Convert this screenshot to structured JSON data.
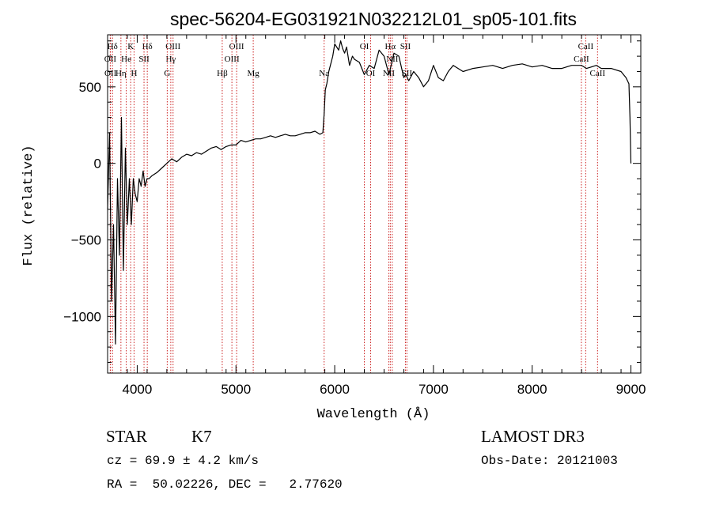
{
  "colors": {
    "axis": "#000000",
    "spectrum": "#000000",
    "line_marker": "#cc2222",
    "background": "#ffffff"
  },
  "chart_data": {
    "type": "line",
    "title": "spec-56204-EG031921N032212L01_sp05-101.fits",
    "xlabel": "Wavelength (Å)",
    "ylabel": "Flux (relative)",
    "xlim": [
      3700,
      9100
    ],
    "ylim": [
      -1370,
      840
    ],
    "xticks": [
      4000,
      5000,
      6000,
      7000,
      8000,
      9000
    ],
    "yticks": [
      -1000,
      -500,
      0,
      500
    ],
    "xtick_labels": [
      "4000",
      "5000",
      "6000",
      "7000",
      "8000",
      "9000"
    ],
    "ytick_labels": [
      "−1000",
      "−500",
      "0",
      "500"
    ],
    "series": [
      {
        "name": "flux",
        "x": [
          3700,
          3720,
          3740,
          3760,
          3780,
          3800,
          3820,
          3840,
          3860,
          3880,
          3900,
          3920,
          3940,
          3960,
          3980,
          4000,
          4020,
          4040,
          4060,
          4080,
          4100,
          4120,
          4150,
          4200,
          4250,
          4300,
          4350,
          4400,
          4450,
          4500,
          4550,
          4600,
          4650,
          4700,
          4750,
          4800,
          4850,
          4900,
          4950,
          5000,
          5050,
          5100,
          5150,
          5200,
          5250,
          5300,
          5350,
          5400,
          5450,
          5500,
          5550,
          5600,
          5650,
          5700,
          5750,
          5800,
          5850,
          5880,
          5893,
          5905,
          5920,
          5940,
          5960,
          5980,
          6000,
          6020,
          6040,
          6060,
          6080,
          6100,
          6120,
          6150,
          6180,
          6200,
          6250,
          6300,
          6350,
          6400,
          6450,
          6500,
          6550,
          6600,
          6650,
          6700,
          6720,
          6750,
          6800,
          6850,
          6900,
          6950,
          7000,
          7050,
          7100,
          7150,
          7200,
          7300,
          7400,
          7500,
          7600,
          7700,
          7800,
          7900,
          8000,
          8100,
          8200,
          8300,
          8400,
          8500,
          8550,
          8600,
          8650,
          8700,
          8800,
          8900,
          8950,
          8980,
          8990,
          9000
        ],
        "y": [
          -300,
          200,
          -900,
          -400,
          -1180,
          -100,
          -600,
          300,
          -700,
          100,
          -400,
          -100,
          -400,
          -100,
          -200,
          -250,
          -100,
          -150,
          -50,
          -150,
          -100,
          -100,
          -80,
          -60,
          -30,
          0,
          30,
          10,
          40,
          60,
          50,
          70,
          60,
          80,
          100,
          110,
          90,
          110,
          120,
          120,
          150,
          140,
          150,
          160,
          160,
          170,
          180,
          170,
          180,
          190,
          180,
          180,
          190,
          200,
          200,
          210,
          190,
          200,
          320,
          480,
          520,
          600,
          650,
          700,
          780,
          760,
          740,
          800,
          750,
          720,
          760,
          640,
          700,
          680,
          660,
          580,
          640,
          620,
          740,
          700,
          580,
          720,
          700,
          560,
          580,
          540,
          600,
          560,
          500,
          540,
          640,
          560,
          540,
          600,
          640,
          600,
          620,
          630,
          640,
          620,
          640,
          650,
          630,
          640,
          620,
          620,
          640,
          640,
          620,
          630,
          640,
          620,
          620,
          600,
          560,
          520,
          300,
          0
        ]
      }
    ],
    "spectral_lines": [
      {
        "label": "Hδ",
        "x": 3750,
        "row": 1
      },
      {
        "label": "K",
        "x": 3934,
        "row": 1
      },
      {
        "label": "Hδ",
        "x": 4102,
        "row": 1
      },
      {
        "label": "OIII",
        "x": 4363,
        "row": 1
      },
      {
        "label": "OIII",
        "x": 5007,
        "row": 1
      },
      {
        "label": "OI",
        "x": 6300,
        "row": 1
      },
      {
        "label": "Hα",
        "x": 6563,
        "row": 1
      },
      {
        "label": "SII",
        "x": 6716,
        "row": 1
      },
      {
        "label": "CaII",
        "x": 8542,
        "row": 1
      },
      {
        "label": "OII",
        "x": 3727,
        "row": 2
      },
      {
        "label": "He",
        "x": 3889,
        "row": 2
      },
      {
        "label": "SII",
        "x": 4069,
        "row": 2
      },
      {
        "label": "Hγ",
        "x": 4340,
        "row": 2
      },
      {
        "label": "OIII",
        "x": 4959,
        "row": 2
      },
      {
        "label": "NII",
        "x": 6583,
        "row": 2
      },
      {
        "label": "CaII",
        "x": 8498,
        "row": 2
      },
      {
        "label": "OII",
        "x": 3729,
        "row": 3
      },
      {
        "label": "Hη",
        "x": 3835,
        "row": 3
      },
      {
        "label": "H",
        "x": 3968,
        "row": 3
      },
      {
        "label": "G",
        "x": 4304,
        "row": 3
      },
      {
        "label": "Hβ",
        "x": 4861,
        "row": 3
      },
      {
        "label": "Mg",
        "x": 5175,
        "row": 3
      },
      {
        "label": "Na",
        "x": 5893,
        "row": 3
      },
      {
        "label": "OI",
        "x": 6364,
        "row": 3
      },
      {
        "label": "NII",
        "x": 6548,
        "row": 3
      },
      {
        "label": "SII",
        "x": 6731,
        "row": 3
      },
      {
        "label": "CaII",
        "x": 8662,
        "row": 3
      }
    ]
  },
  "info": {
    "object_class": "STAR",
    "subclass": "K7",
    "survey": "LAMOST DR3",
    "redshift_line": "cz = 69.9 ± 4.2 km/s",
    "obs_date_line": "Obs-Date: 20121003",
    "coords_line": "RA =  50.02226, DEC =   2.77620"
  }
}
